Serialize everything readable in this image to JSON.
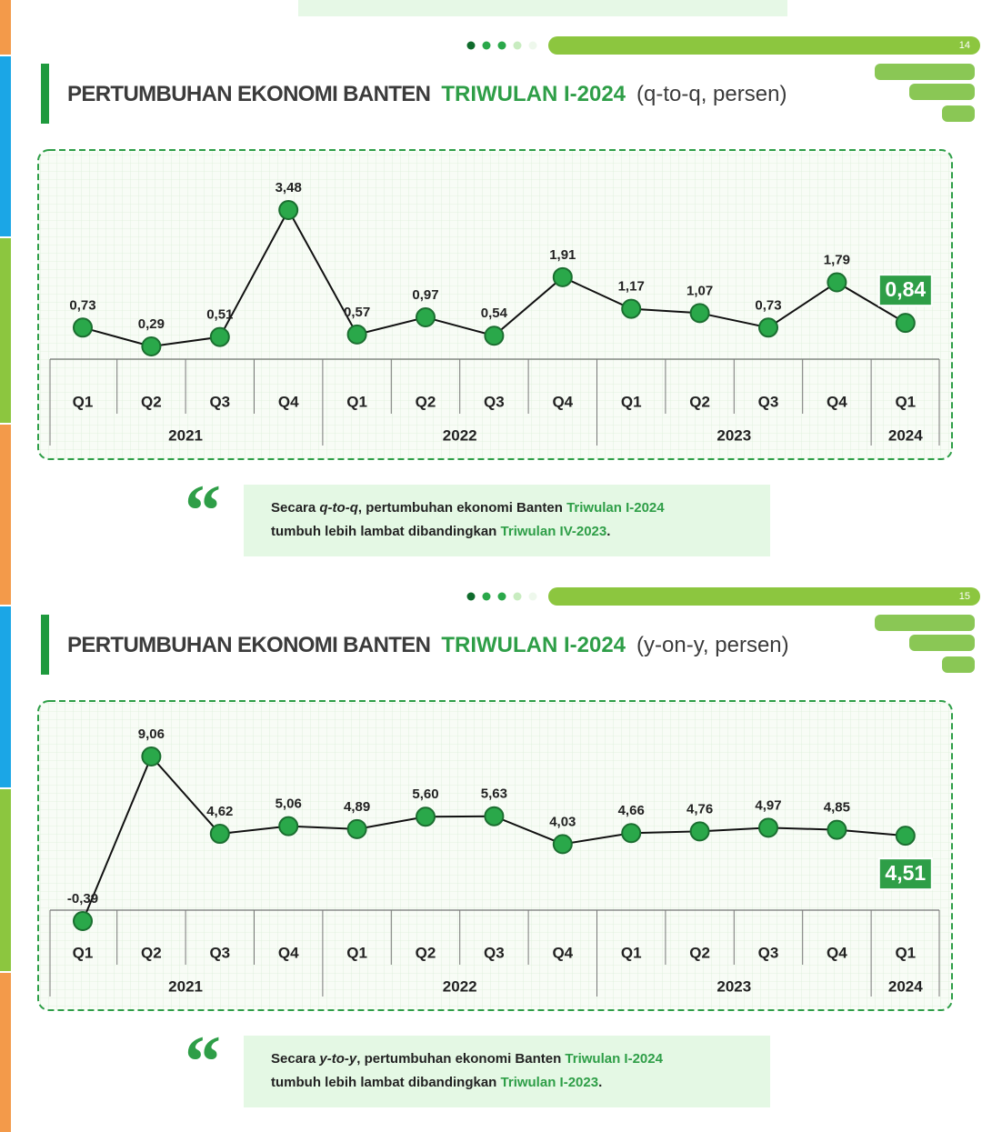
{
  "chart_data": [
    {
      "type": "line",
      "title": "PERTUMBUHAN EKONOMI BANTEN",
      "title_highlight": "TRIWULAN I-2024",
      "subtitle": "(q-to-q, persen)",
      "categories": [
        "Q1",
        "Q2",
        "Q3",
        "Q4",
        "Q1",
        "Q2",
        "Q3",
        "Q4",
        "Q1",
        "Q2",
        "Q3",
        "Q4",
        "Q1"
      ],
      "years": [
        "2021",
        null,
        null,
        null,
        "2022",
        null,
        null,
        null,
        "2023",
        null,
        null,
        null,
        "2024"
      ],
      "values": [
        0.73,
        0.29,
        0.51,
        3.48,
        0.57,
        0.97,
        0.54,
        1.91,
        1.17,
        1.07,
        0.73,
        1.79,
        0.84
      ],
      "value_labels": [
        "0,73",
        "0,29",
        "0,51",
        "3,48",
        "0,57",
        "0,97",
        "0,54",
        "1,91",
        "1,17",
        "1,07",
        "0,73",
        "1,79",
        "0,84"
      ],
      "color": "#2aa84a",
      "line_color": "#111111"
    },
    {
      "type": "line",
      "title": "PERTUMBUHAN EKONOMI BANTEN",
      "title_highlight": "TRIWULAN I-2024",
      "subtitle": "(y-on-y, persen)",
      "categories": [
        "Q1",
        "Q2",
        "Q3",
        "Q4",
        "Q1",
        "Q2",
        "Q3",
        "Q4",
        "Q1",
        "Q2",
        "Q3",
        "Q4",
        "Q1"
      ],
      "years": [
        "2021",
        null,
        null,
        null,
        "2022",
        null,
        null,
        null,
        "2023",
        null,
        null,
        null,
        "2024"
      ],
      "values": [
        -0.39,
        9.06,
        4.62,
        5.06,
        4.89,
        5.6,
        5.63,
        4.03,
        4.66,
        4.76,
        4.97,
        4.85,
        4.51
      ],
      "value_labels": [
        "-0,39",
        "9,06",
        "4,62",
        "5,06",
        "4,89",
        "5,60",
        "5,63",
        "4,03",
        "4,66",
        "4,76",
        "4,97",
        "4,85",
        "4,51"
      ],
      "color": "#2aa84a",
      "line_color": "#111111"
    }
  ],
  "slides": [
    {
      "page": 14,
      "note": [
        "Secara ",
        "q-to-q",
        ", pertumbuhan ekonomi Banten ",
        "Triwulan I-2024",
        "tumbuh lebih lambat dibandingkan ",
        "Triwulan IV-2023",
        "."
      ]
    },
    {
      "page": 15,
      "note": [
        "Secara ",
        "y-to-y",
        ", pertumbuhan ekonomi Banten ",
        "Triwulan I-2024",
        "tumbuh lebih lambat dibandingkan ",
        "Triwulan I-2023",
        "."
      ]
    }
  ]
}
